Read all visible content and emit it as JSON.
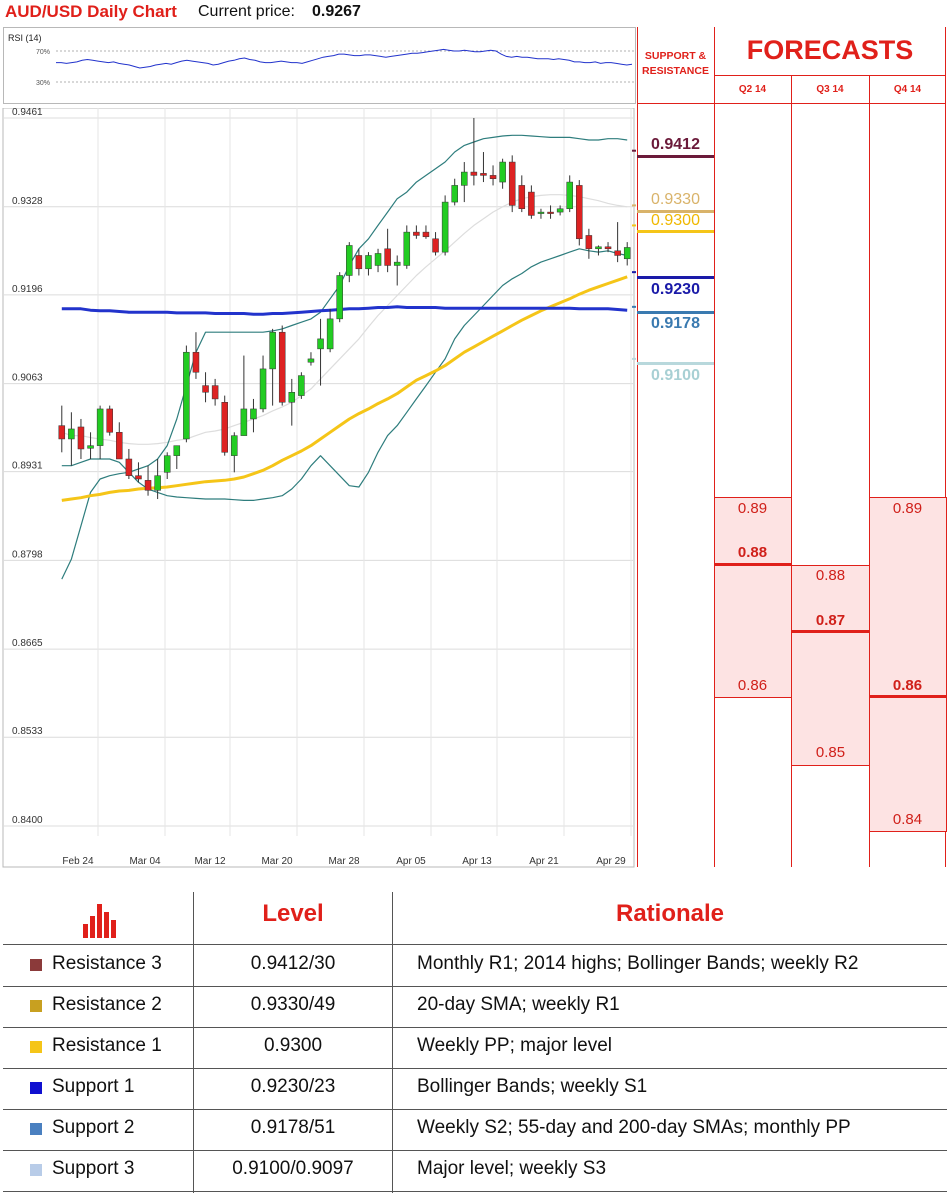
{
  "header": {
    "title": "AUD/USD Daily Chart",
    "price_label": "Current price:",
    "price_value": "0.9267"
  },
  "rsi": {
    "label": "RSI (14)",
    "levels": [
      "70%",
      "30%"
    ],
    "values": [
      55,
      55,
      54,
      55,
      56,
      58,
      59,
      58,
      57,
      56,
      55,
      56,
      54,
      53,
      52,
      50,
      48,
      49,
      50,
      52,
      53,
      54,
      53,
      55,
      57,
      58,
      57,
      56,
      55,
      54,
      52,
      53,
      55,
      57,
      58,
      60,
      61,
      59,
      58,
      56,
      55,
      55,
      56,
      57,
      56,
      55,
      55,
      54,
      56,
      58,
      60,
      62,
      63,
      64,
      66,
      66,
      65,
      64,
      64,
      65,
      65,
      64,
      63,
      62,
      63,
      64,
      65,
      66,
      67,
      67,
      68,
      69,
      70,
      71,
      72,
      71,
      70,
      70,
      71,
      70,
      69,
      69,
      70,
      71,
      70,
      66,
      63,
      62,
      63,
      62,
      62,
      61,
      60,
      60,
      60,
      59,
      60,
      59,
      58,
      56,
      56,
      55,
      55,
      56,
      54,
      55,
      55,
      54,
      53,
      52,
      53
    ]
  },
  "chart_data": {
    "type": "candlestick",
    "title": "AUD/USD Daily Chart",
    "ylim": [
      0.84,
      0.9461
    ],
    "y_ticks": [
      "0.9461",
      "0.9328",
      "0.9196",
      "0.9063",
      "0.8931",
      "0.8798",
      "0.8665",
      "0.8533",
      "0.8400"
    ],
    "x_ticks": [
      "Feb 24",
      "Mar 04",
      "Mar 12",
      "Mar 20",
      "Mar 28",
      "Apr 05",
      "Apr 13",
      "Apr 21",
      "Apr 29"
    ],
    "candles": [
      {
        "o": 0.9,
        "h": 0.903,
        "l": 0.896,
        "c": 0.898
      },
      {
        "o": 0.898,
        "h": 0.902,
        "l": 0.894,
        "c": 0.8995
      },
      {
        "o": 0.8998,
        "h": 0.901,
        "l": 0.895,
        "c": 0.8965
      },
      {
        "o": 0.8966,
        "h": 0.899,
        "l": 0.895,
        "c": 0.897
      },
      {
        "o": 0.897,
        "h": 0.903,
        "l": 0.895,
        "c": 0.9025
      },
      {
        "o": 0.9025,
        "h": 0.903,
        "l": 0.8985,
        "c": 0.899
      },
      {
        "o": 0.899,
        "h": 0.9005,
        "l": 0.895,
        "c": 0.895
      },
      {
        "o": 0.895,
        "h": 0.8965,
        "l": 0.892,
        "c": 0.8925
      },
      {
        "o": 0.8925,
        "h": 0.8945,
        "l": 0.8915,
        "c": 0.892
      },
      {
        "o": 0.8918,
        "h": 0.894,
        "l": 0.8895,
        "c": 0.8903
      },
      {
        "o": 0.8903,
        "h": 0.895,
        "l": 0.889,
        "c": 0.8925
      },
      {
        "o": 0.893,
        "h": 0.896,
        "l": 0.892,
        "c": 0.8955
      },
      {
        "o": 0.8955,
        "h": 0.897,
        "l": 0.8935,
        "c": 0.897
      },
      {
        "o": 0.898,
        "h": 0.912,
        "l": 0.8975,
        "c": 0.911
      },
      {
        "o": 0.911,
        "h": 0.914,
        "l": 0.907,
        "c": 0.908
      },
      {
        "o": 0.906,
        "h": 0.908,
        "l": 0.9035,
        "c": 0.905
      },
      {
        "o": 0.906,
        "h": 0.907,
        "l": 0.903,
        "c": 0.904
      },
      {
        "o": 0.9035,
        "h": 0.9045,
        "l": 0.8955,
        "c": 0.896
      },
      {
        "o": 0.8955,
        "h": 0.899,
        "l": 0.893,
        "c": 0.8985
      },
      {
        "o": 0.8985,
        "h": 0.9105,
        "l": 0.8985,
        "c": 0.9025
      },
      {
        "o": 0.901,
        "h": 0.904,
        "l": 0.899,
        "c": 0.9025
      },
      {
        "o": 0.9025,
        "h": 0.9105,
        "l": 0.902,
        "c": 0.9085
      },
      {
        "o": 0.9085,
        "h": 0.9145,
        "l": 0.903,
        "c": 0.914
      },
      {
        "o": 0.914,
        "h": 0.915,
        "l": 0.903,
        "c": 0.9035
      },
      {
        "o": 0.9035,
        "h": 0.907,
        "l": 0.9,
        "c": 0.905
      },
      {
        "o": 0.9045,
        "h": 0.908,
        "l": 0.904,
        "c": 0.9075
      },
      {
        "o": 0.9095,
        "h": 0.911,
        "l": 0.909,
        "c": 0.91
      },
      {
        "o": 0.9115,
        "h": 0.916,
        "l": 0.906,
        "c": 0.913
      },
      {
        "o": 0.9115,
        "h": 0.9175,
        "l": 0.911,
        "c": 0.916
      },
      {
        "o": 0.916,
        "h": 0.923,
        "l": 0.9155,
        "c": 0.9225
      },
      {
        "o": 0.9225,
        "h": 0.9275,
        "l": 0.9215,
        "c": 0.927
      },
      {
        "o": 0.9255,
        "h": 0.9265,
        "l": 0.9225,
        "c": 0.9235
      },
      {
        "o": 0.9235,
        "h": 0.926,
        "l": 0.9225,
        "c": 0.9255
      },
      {
        "o": 0.924,
        "h": 0.9265,
        "l": 0.923,
        "c": 0.9258
      },
      {
        "o": 0.9265,
        "h": 0.9295,
        "l": 0.923,
        "c": 0.924
      },
      {
        "o": 0.924,
        "h": 0.9255,
        "l": 0.921,
        "c": 0.9245
      },
      {
        "o": 0.924,
        "h": 0.93,
        "l": 0.9235,
        "c": 0.929
      },
      {
        "o": 0.929,
        "h": 0.93,
        "l": 0.928,
        "c": 0.9285
      },
      {
        "o": 0.929,
        "h": 0.93,
        "l": 0.928,
        "c": 0.9283
      },
      {
        "o": 0.928,
        "h": 0.929,
        "l": 0.9255,
        "c": 0.926
      },
      {
        "o": 0.926,
        "h": 0.9345,
        "l": 0.9255,
        "c": 0.9335
      },
      {
        "o": 0.9335,
        "h": 0.937,
        "l": 0.933,
        "c": 0.936
      },
      {
        "o": 0.936,
        "h": 0.9395,
        "l": 0.9335,
        "c": 0.938
      },
      {
        "o": 0.938,
        "h": 0.9461,
        "l": 0.936,
        "c": 0.9375
      },
      {
        "o": 0.9378,
        "h": 0.941,
        "l": 0.9365,
        "c": 0.9375
      },
      {
        "o": 0.9375,
        "h": 0.939,
        "l": 0.936,
        "c": 0.937
      },
      {
        "o": 0.9365,
        "h": 0.94,
        "l": 0.9355,
        "c": 0.9395
      },
      {
        "o": 0.9395,
        "h": 0.9405,
        "l": 0.932,
        "c": 0.933
      },
      {
        "o": 0.936,
        "h": 0.9375,
        "l": 0.932,
        "c": 0.9325
      },
      {
        "o": 0.935,
        "h": 0.936,
        "l": 0.931,
        "c": 0.9315
      },
      {
        "o": 0.9318,
        "h": 0.9325,
        "l": 0.931,
        "c": 0.932
      },
      {
        "o": 0.932,
        "h": 0.933,
        "l": 0.931,
        "c": 0.9318
      },
      {
        "o": 0.932,
        "h": 0.933,
        "l": 0.9315,
        "c": 0.9325
      },
      {
        "o": 0.9325,
        "h": 0.9375,
        "l": 0.932,
        "c": 0.9365
      },
      {
        "o": 0.936,
        "h": 0.9368,
        "l": 0.927,
        "c": 0.928
      },
      {
        "o": 0.9285,
        "h": 0.9295,
        "l": 0.925,
        "c": 0.9265
      },
      {
        "o": 0.9265,
        "h": 0.927,
        "l": 0.9255,
        "c": 0.9268
      },
      {
        "o": 0.9268,
        "h": 0.9275,
        "l": 0.926,
        "c": 0.9265
      },
      {
        "o": 0.9262,
        "h": 0.9305,
        "l": 0.9245,
        "c": 0.9255
      },
      {
        "o": 0.925,
        "h": 0.9275,
        "l": 0.924,
        "c": 0.9267
      }
    ],
    "sma_yellow": [
      0.8888,
      0.889,
      0.8892,
      0.8895,
      0.8897,
      0.89,
      0.8902,
      0.8903,
      0.8905,
      0.8906,
      0.8907,
      0.8908,
      0.891,
      0.8912,
      0.8914,
      0.8916,
      0.8917,
      0.8918,
      0.892,
      0.8923,
      0.8928,
      0.8933,
      0.894,
      0.8948,
      0.8955,
      0.8962,
      0.897,
      0.898,
      0.899,
      0.9,
      0.901,
      0.9018,
      0.9025,
      0.9033,
      0.904,
      0.9048,
      0.9058,
      0.9068,
      0.9075,
      0.9082,
      0.909,
      0.91,
      0.911,
      0.9118,
      0.9126,
      0.9134,
      0.9142,
      0.915,
      0.9158,
      0.9165,
      0.9172,
      0.9178,
      0.9184,
      0.919,
      0.9197,
      0.9203,
      0.9208,
      0.9213,
      0.9218,
      0.9223
    ],
    "sma_blue": [
      0.9175,
      0.9175,
      0.9175,
      0.9173,
      0.9172,
      0.9172,
      0.9171,
      0.917,
      0.917,
      0.917,
      0.917,
      0.917,
      0.9169,
      0.9169,
      0.9169,
      0.9169,
      0.9168,
      0.9168,
      0.9168,
      0.9168,
      0.9167,
      0.9167,
      0.9168,
      0.9168,
      0.9169,
      0.917,
      0.9171,
      0.9172,
      0.9173,
      0.9174,
      0.9175,
      0.9175,
      0.9176,
      0.9177,
      0.9177,
      0.9178,
      0.9177,
      0.9177,
      0.9177,
      0.9177,
      0.9176,
      0.9176,
      0.9176,
      0.9176,
      0.9176,
      0.9176,
      0.9176,
      0.9176,
      0.9176,
      0.9176,
      0.9176,
      0.9176,
      0.9176,
      0.9176,
      0.9175,
      0.9175,
      0.9175,
      0.9175,
      0.9174,
      0.9173
    ],
    "bb_upper": [
      0.877,
      0.88,
      0.885,
      0.89,
      0.892,
      0.8925,
      0.8928,
      0.893,
      0.8935,
      0.894,
      0.895,
      0.897,
      0.901,
      0.906,
      0.911,
      0.914,
      0.914,
      0.914,
      0.914,
      0.914,
      0.914,
      0.914,
      0.9142,
      0.9145,
      0.915,
      0.9155,
      0.916,
      0.917,
      0.919,
      0.921,
      0.924,
      0.9265,
      0.928,
      0.93,
      0.932,
      0.934,
      0.935,
      0.9365,
      0.9375,
      0.9385,
      0.9395,
      0.941,
      0.942,
      0.9425,
      0.943,
      0.9432,
      0.9434,
      0.9435,
      0.9435,
      0.9434,
      0.9433,
      0.9432,
      0.9432,
      0.9432,
      0.943,
      0.9428,
      0.9428,
      0.943,
      0.943,
      0.9428
    ],
    "bb_lower": [
      0.894,
      0.894,
      0.8945,
      0.895,
      0.895,
      0.895,
      0.8945,
      0.893,
      0.8915,
      0.8905,
      0.89,
      0.8895,
      0.8893,
      0.8892,
      0.8891,
      0.889,
      0.889,
      0.889,
      0.8889,
      0.8888,
      0.8888,
      0.889,
      0.8892,
      0.8895,
      0.8905,
      0.892,
      0.894,
      0.8955,
      0.894,
      0.8925,
      0.891,
      0.8908,
      0.893,
      0.896,
      0.8985,
      0.9,
      0.902,
      0.904,
      0.906,
      0.908,
      0.91,
      0.913,
      0.915,
      0.9165,
      0.918,
      0.9195,
      0.921,
      0.922,
      0.9228,
      0.9238,
      0.9245,
      0.925,
      0.9255,
      0.926,
      0.9265,
      0.9262,
      0.926,
      0.9262,
      0.9258,
      0.9255
    ],
    "mid_band": [
      0.899,
      0.8985,
      0.8985,
      0.8982,
      0.898,
      0.8978,
      0.8975,
      0.8973,
      0.8972,
      0.8972,
      0.8973,
      0.8975,
      0.8978,
      0.898,
      0.8985,
      0.899,
      0.8992,
      0.8995,
      0.9,
      0.9005,
      0.901,
      0.9015,
      0.9022,
      0.9028,
      0.9035,
      0.9045,
      0.9055,
      0.907,
      0.9085,
      0.91,
      0.9115,
      0.913,
      0.9148,
      0.9165,
      0.918,
      0.9195,
      0.921,
      0.9225,
      0.9238,
      0.925,
      0.9262,
      0.9275,
      0.9288,
      0.93,
      0.931,
      0.932,
      0.9328,
      0.9335,
      0.934,
      0.9343,
      0.9345,
      0.9346,
      0.9346,
      0.9345,
      0.9343,
      0.934,
      0.9337,
      0.9333,
      0.933,
      0.9328
    ],
    "sr_lines": [
      {
        "value": "0.9412",
        "level": 0.9412,
        "color": "#6b1a3a"
      },
      {
        "value": "0.9330",
        "level": 0.933,
        "color": "#d9b36a"
      },
      {
        "value": "0.9300",
        "level": 0.93,
        "color": "#f5c518"
      },
      {
        "value": "0.9230",
        "level": 0.923,
        "color": "#1a1aa8"
      },
      {
        "value": "0.9178",
        "level": 0.9178,
        "color": "#3a7ab0"
      },
      {
        "value": "0.9100",
        "level": 0.91,
        "color": "#b8d8dc"
      }
    ]
  },
  "forecasts": {
    "title": "FORECASTS",
    "sr_header_line1": "SUPPORT &",
    "sr_header_line2": "RESISTANCE",
    "quarters": [
      "Q2 14",
      "Q3 14",
      "Q4 14"
    ],
    "q2": {
      "high": "0.89",
      "mid": "0.88",
      "low": "0.86"
    },
    "q3": {
      "high": "0.88",
      "mid": "0.87",
      "low": "0.85"
    },
    "q4": {
      "high": "0.89",
      "mid": "0.86",
      "low": "0.84"
    }
  },
  "table": {
    "col_level": "Level",
    "col_rationale": "Rationale",
    "rows": [
      {
        "name": "Resistance 3",
        "level": "0.9412/30",
        "rationale": "Monthly R1; 2014 highs; Bollinger Bands; weekly R2",
        "color": "#8b3a3a"
      },
      {
        "name": "Resistance 2",
        "level": "0.9330/49",
        "rationale": "20-day SMA; weekly R1",
        "color": "#c8a020"
      },
      {
        "name": "Resistance 1",
        "level": "0.9300",
        "rationale": "Weekly PP; major level",
        "color": "#f5c518"
      },
      {
        "name": "Support 1",
        "level": "0.9230/23",
        "rationale": "Bollinger Bands; weekly S1",
        "color": "#1010d0"
      },
      {
        "name": "Support 2",
        "level": "0.9178/51",
        "rationale": "Weekly S2; 55-day and 200-day SMAs; monthly PP",
        "color": "#4a80c0"
      },
      {
        "name": "Support 3",
        "level": "0.9100/0.9097",
        "rationale": "Major level; weekly S3",
        "color": "#b8cce8"
      }
    ]
  }
}
